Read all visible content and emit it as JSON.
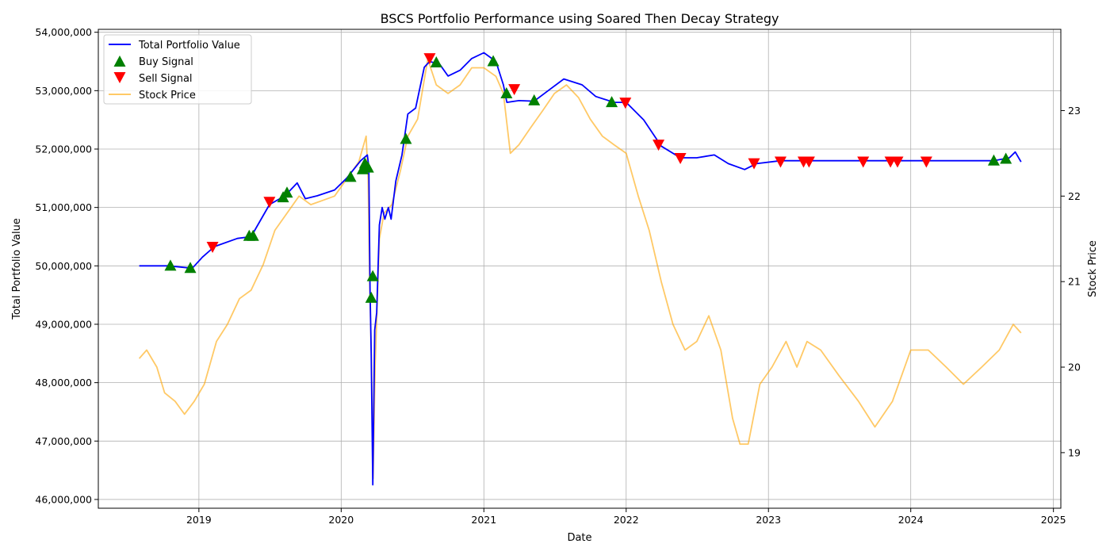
{
  "chart_data": {
    "type": "line",
    "title": "BSCS Portfolio Performance using Soared Then Decay Strategy",
    "xlabel": "Date",
    "ylabel": "Total Portfolio Value",
    "y2label": "Stock Price",
    "x_range": [
      "2018-04-18",
      "2025-01-20"
    ],
    "ylim": [
      45850000,
      54050000
    ],
    "y2lim": [
      18.35,
      23.95
    ],
    "x_ticks": [
      "2019",
      "2020",
      "2021",
      "2022",
      "2023",
      "2024",
      "2025"
    ],
    "y_ticks": [
      "46,000,000",
      "47,000,000",
      "48,000,000",
      "49,000,000",
      "50,000,000",
      "51,000,000",
      "52,000,000",
      "53,000,000",
      "54,000,000"
    ],
    "y2_ticks": [
      "19",
      "20",
      "21",
      "22",
      "23"
    ],
    "grid": true,
    "legend_placement": "upper-left",
    "legend": [
      "Total Portfolio Value",
      "Buy Signal",
      "Sell Signal",
      "Stock Price"
    ],
    "colors": {
      "portfolio": "#0000ff",
      "buy": "#008000",
      "sell": "#ff0000",
      "price": "#ffa500"
    },
    "series": [
      {
        "name": "Total Portfolio Value",
        "axis": "left",
        "points": [
          [
            "2018-08-01",
            50000000
          ],
          [
            "2018-10-15",
            50000000
          ],
          [
            "2018-12-15",
            49960000
          ],
          [
            "2019-01-10",
            50150000
          ],
          [
            "2019-02-10",
            50330000
          ],
          [
            "2019-04-10",
            50470000
          ],
          [
            "2019-05-15",
            50500000
          ],
          [
            "2019-07-01",
            51050000
          ],
          [
            "2019-08-10",
            51200000
          ],
          [
            "2019-09-10",
            51420000
          ],
          [
            "2019-10-01",
            51150000
          ],
          [
            "2019-11-01",
            51200000
          ],
          [
            "2019-12-15",
            51300000
          ],
          [
            "2020-01-15",
            51500000
          ],
          [
            "2020-02-20",
            51800000
          ],
          [
            "2020-03-08",
            51900000
          ],
          [
            "2020-03-12",
            51700000
          ],
          [
            "2020-03-15",
            49600000
          ],
          [
            "2020-03-18",
            48500000
          ],
          [
            "2020-03-22",
            46250000
          ],
          [
            "2020-03-27",
            48900000
          ],
          [
            "2020-04-01",
            49200000
          ],
          [
            "2020-04-08",
            50700000
          ],
          [
            "2020-04-15",
            51000000
          ],
          [
            "2020-04-22",
            50800000
          ],
          [
            "2020-05-01",
            51000000
          ],
          [
            "2020-05-08",
            50800000
          ],
          [
            "2020-05-20",
            51450000
          ],
          [
            "2020-06-05",
            51900000
          ],
          [
            "2020-06-20",
            52600000
          ],
          [
            "2020-07-10",
            52700000
          ],
          [
            "2020-08-01",
            53400000
          ],
          [
            "2020-08-15",
            53500000
          ],
          [
            "2020-09-10",
            53450000
          ],
          [
            "2020-10-01",
            53250000
          ],
          [
            "2020-11-01",
            53350000
          ],
          [
            "2020-12-01",
            53550000
          ],
          [
            "2021-01-01",
            53650000
          ],
          [
            "2021-02-01",
            53500000
          ],
          [
            "2021-02-20",
            53100000
          ],
          [
            "2021-03-01",
            52800000
          ],
          [
            "2021-04-01",
            52830000
          ],
          [
            "2021-05-10",
            52820000
          ],
          [
            "2021-06-15",
            53000000
          ],
          [
            "2021-07-25",
            53200000
          ],
          [
            "2021-09-10",
            53100000
          ],
          [
            "2021-10-15",
            52900000
          ],
          [
            "2021-12-01",
            52800000
          ],
          [
            "2022-01-01",
            52800000
          ],
          [
            "2022-02-15",
            52500000
          ],
          [
            "2022-04-01",
            52050000
          ],
          [
            "2022-05-20",
            51850000
          ],
          [
            "2022-07-01",
            51850000
          ],
          [
            "2022-08-15",
            51900000
          ],
          [
            "2022-09-20",
            51750000
          ],
          [
            "2022-11-01",
            51650000
          ],
          [
            "2022-12-01",
            51750000
          ],
          [
            "2023-02-01",
            51800000
          ],
          [
            "2023-06-01",
            51800000
          ],
          [
            "2024-01-01",
            51800000
          ],
          [
            "2024-08-01",
            51800000
          ],
          [
            "2024-09-10",
            51850000
          ],
          [
            "2024-09-25",
            51950000
          ],
          [
            "2024-10-10",
            51780000
          ]
        ]
      },
      {
        "name": "Stock Price",
        "axis": "right",
        "points": [
          [
            "2018-08-01",
            20.1
          ],
          [
            "2018-08-20",
            20.2
          ],
          [
            "2018-09-15",
            20.0
          ],
          [
            "2018-10-05",
            19.7
          ],
          [
            "2018-11-01",
            19.6
          ],
          [
            "2018-11-25",
            19.45
          ],
          [
            "2018-12-20",
            19.6
          ],
          [
            "2019-01-15",
            19.8
          ],
          [
            "2019-02-15",
            20.3
          ],
          [
            "2019-03-15",
            20.5
          ],
          [
            "2019-04-15",
            20.8
          ],
          [
            "2019-05-15",
            20.9
          ],
          [
            "2019-06-15",
            21.2
          ],
          [
            "2019-07-15",
            21.6
          ],
          [
            "2019-08-15",
            21.8
          ],
          [
            "2019-09-15",
            22.0
          ],
          [
            "2019-10-15",
            21.9
          ],
          [
            "2019-11-15",
            21.95
          ],
          [
            "2019-12-15",
            22.0
          ],
          [
            "2020-01-15",
            22.2
          ],
          [
            "2020-02-15",
            22.4
          ],
          [
            "2020-03-05",
            22.7
          ],
          [
            "2020-03-10",
            22.2
          ],
          [
            "2020-03-14",
            21.0
          ],
          [
            "2020-03-19",
            20.0
          ],
          [
            "2020-03-23",
            18.7
          ],
          [
            "2020-03-28",
            20.0
          ],
          [
            "2020-04-08",
            21.5
          ],
          [
            "2020-04-20",
            21.8
          ],
          [
            "2020-05-10",
            21.9
          ],
          [
            "2020-06-01",
            22.3
          ],
          [
            "2020-06-20",
            22.7
          ],
          [
            "2020-07-15",
            22.9
          ],
          [
            "2020-08-10",
            23.6
          ],
          [
            "2020-09-01",
            23.3
          ],
          [
            "2020-10-01",
            23.2
          ],
          [
            "2020-11-01",
            23.3
          ],
          [
            "2020-12-01",
            23.5
          ],
          [
            "2021-01-01",
            23.5
          ],
          [
            "2021-02-01",
            23.4
          ],
          [
            "2021-02-20",
            23.2
          ],
          [
            "2021-03-10",
            22.5
          ],
          [
            "2021-04-01",
            22.6
          ],
          [
            "2021-05-01",
            22.8
          ],
          [
            "2021-06-01",
            23.0
          ],
          [
            "2021-07-01",
            23.2
          ],
          [
            "2021-08-01",
            23.3
          ],
          [
            "2021-09-01",
            23.15
          ],
          [
            "2021-10-01",
            22.9
          ],
          [
            "2021-11-01",
            22.7
          ],
          [
            "2021-12-01",
            22.6
          ],
          [
            "2022-01-01",
            22.5
          ],
          [
            "2022-02-01",
            22.0
          ],
          [
            "2022-03-01",
            21.6
          ],
          [
            "2022-04-01",
            21.0
          ],
          [
            "2022-05-01",
            20.5
          ],
          [
            "2022-06-01",
            20.2
          ],
          [
            "2022-07-01",
            20.3
          ],
          [
            "2022-08-01",
            20.6
          ],
          [
            "2022-09-01",
            20.2
          ],
          [
            "2022-10-01",
            19.4
          ],
          [
            "2022-10-20",
            19.1
          ],
          [
            "2022-11-10",
            19.1
          ],
          [
            "2022-12-10",
            19.8
          ],
          [
            "2023-01-10",
            20.0
          ],
          [
            "2023-02-15",
            20.3
          ],
          [
            "2023-03-15",
            20.0
          ],
          [
            "2023-04-10",
            20.3
          ],
          [
            "2023-05-15",
            20.2
          ],
          [
            "2023-07-01",
            19.9
          ],
          [
            "2023-08-20",
            19.6
          ],
          [
            "2023-10-01",
            19.3
          ],
          [
            "2023-11-15",
            19.6
          ],
          [
            "2024-01-01",
            20.2
          ],
          [
            "2024-02-15",
            20.2
          ],
          [
            "2024-04-01",
            20.0
          ],
          [
            "2024-05-15",
            19.8
          ],
          [
            "2024-07-01",
            20.0
          ],
          [
            "2024-08-15",
            20.2
          ],
          [
            "2024-09-20",
            20.5
          ],
          [
            "2024-10-10",
            20.4
          ]
        ]
      },
      {
        "name": "Buy Signal",
        "axis": "left",
        "type": "scatter",
        "points": [
          [
            "2018-10-20",
            50000000
          ],
          [
            "2018-12-10",
            49960000
          ],
          [
            "2019-05-10",
            50510000
          ],
          [
            "2019-05-20",
            50510000
          ],
          [
            "2019-08-05",
            51170000
          ],
          [
            "2019-08-15",
            51250000
          ],
          [
            "2020-01-25",
            51520000
          ],
          [
            "2020-02-25",
            51650000
          ],
          [
            "2020-03-02",
            51750000
          ],
          [
            "2020-03-10",
            51680000
          ],
          [
            "2020-03-18",
            49450000
          ],
          [
            "2020-03-22",
            49820000
          ],
          [
            "2020-06-15",
            52170000
          ],
          [
            "2020-09-01",
            53480000
          ],
          [
            "2021-01-25",
            53500000
          ],
          [
            "2021-02-28",
            52950000
          ],
          [
            "2021-05-10",
            52830000
          ],
          [
            "2021-11-25",
            52800000
          ],
          [
            "2024-08-01",
            51800000
          ],
          [
            "2024-09-01",
            51830000
          ]
        ]
      },
      {
        "name": "Sell Signal",
        "axis": "left",
        "type": "scatter",
        "points": [
          [
            "2019-02-05",
            50330000
          ],
          [
            "2019-07-01",
            51100000
          ],
          [
            "2020-08-15",
            53560000
          ],
          [
            "2021-03-20",
            53030000
          ],
          [
            "2021-12-30",
            52800000
          ],
          [
            "2022-03-25",
            52080000
          ],
          [
            "2022-05-20",
            51850000
          ],
          [
            "2022-11-25",
            51760000
          ],
          [
            "2023-02-01",
            51790000
          ],
          [
            "2023-04-01",
            51790000
          ],
          [
            "2023-04-15",
            51790000
          ],
          [
            "2023-09-01",
            51790000
          ],
          [
            "2023-11-10",
            51790000
          ],
          [
            "2023-11-28",
            51790000
          ],
          [
            "2024-02-10",
            51790000
          ]
        ]
      }
    ]
  }
}
